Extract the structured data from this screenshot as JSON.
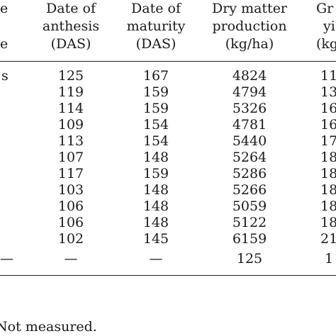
{
  "table": {
    "header": {
      "col0_line1": "e",
      "col0_line3": "e",
      "col1": [
        "Date of",
        "anthesis",
        "(DAS)"
      ],
      "col2": [
        "Date of",
        "maturity",
        "(DAS)"
      ],
      "col3": [
        "Dry matter",
        "production",
        "(kg/ha)"
      ],
      "col4": [
        "Gr",
        "yi",
        "(kg"
      ]
    },
    "rows": [
      {
        "c0": "s",
        "c1": "125",
        "c2": "167",
        "c3": "4824",
        "c4": "11"
      },
      {
        "c0": "",
        "c1": "119",
        "c2": "159",
        "c3": "4794",
        "c4": "13"
      },
      {
        "c0": "",
        "c1": "114",
        "c2": "159",
        "c3": "5326",
        "c4": "16"
      },
      {
        "c0": "",
        "c1": "109",
        "c2": "154",
        "c3": "4781",
        "c4": "16"
      },
      {
        "c0": "",
        "c1": "113",
        "c2": "154",
        "c3": "5440",
        "c4": "17"
      },
      {
        "c0": "",
        "c1": "107",
        "c2": "148",
        "c3": "5264",
        "c4": "18"
      },
      {
        "c0": "",
        "c1": "117",
        "c2": "159",
        "c3": "5286",
        "c4": "18"
      },
      {
        "c0": "",
        "c1": "103",
        "c2": "148",
        "c3": "5266",
        "c4": "18"
      },
      {
        "c0": "",
        "c1": "106",
        "c2": "148",
        "c3": "5059",
        "c4": "18"
      },
      {
        "c0": "",
        "c1": "106",
        "c2": "148",
        "c3": "5122",
        "c4": "18"
      },
      {
        "c0": "",
        "c1": "102",
        "c2": "145",
        "c3": "6159",
        "c4": "21"
      }
    ],
    "lsd_row": {
      "c0": "—",
      "c1": "—",
      "c2": "—",
      "c3": "125",
      "c4": "1"
    },
    "footnote": "Not measured."
  }
}
